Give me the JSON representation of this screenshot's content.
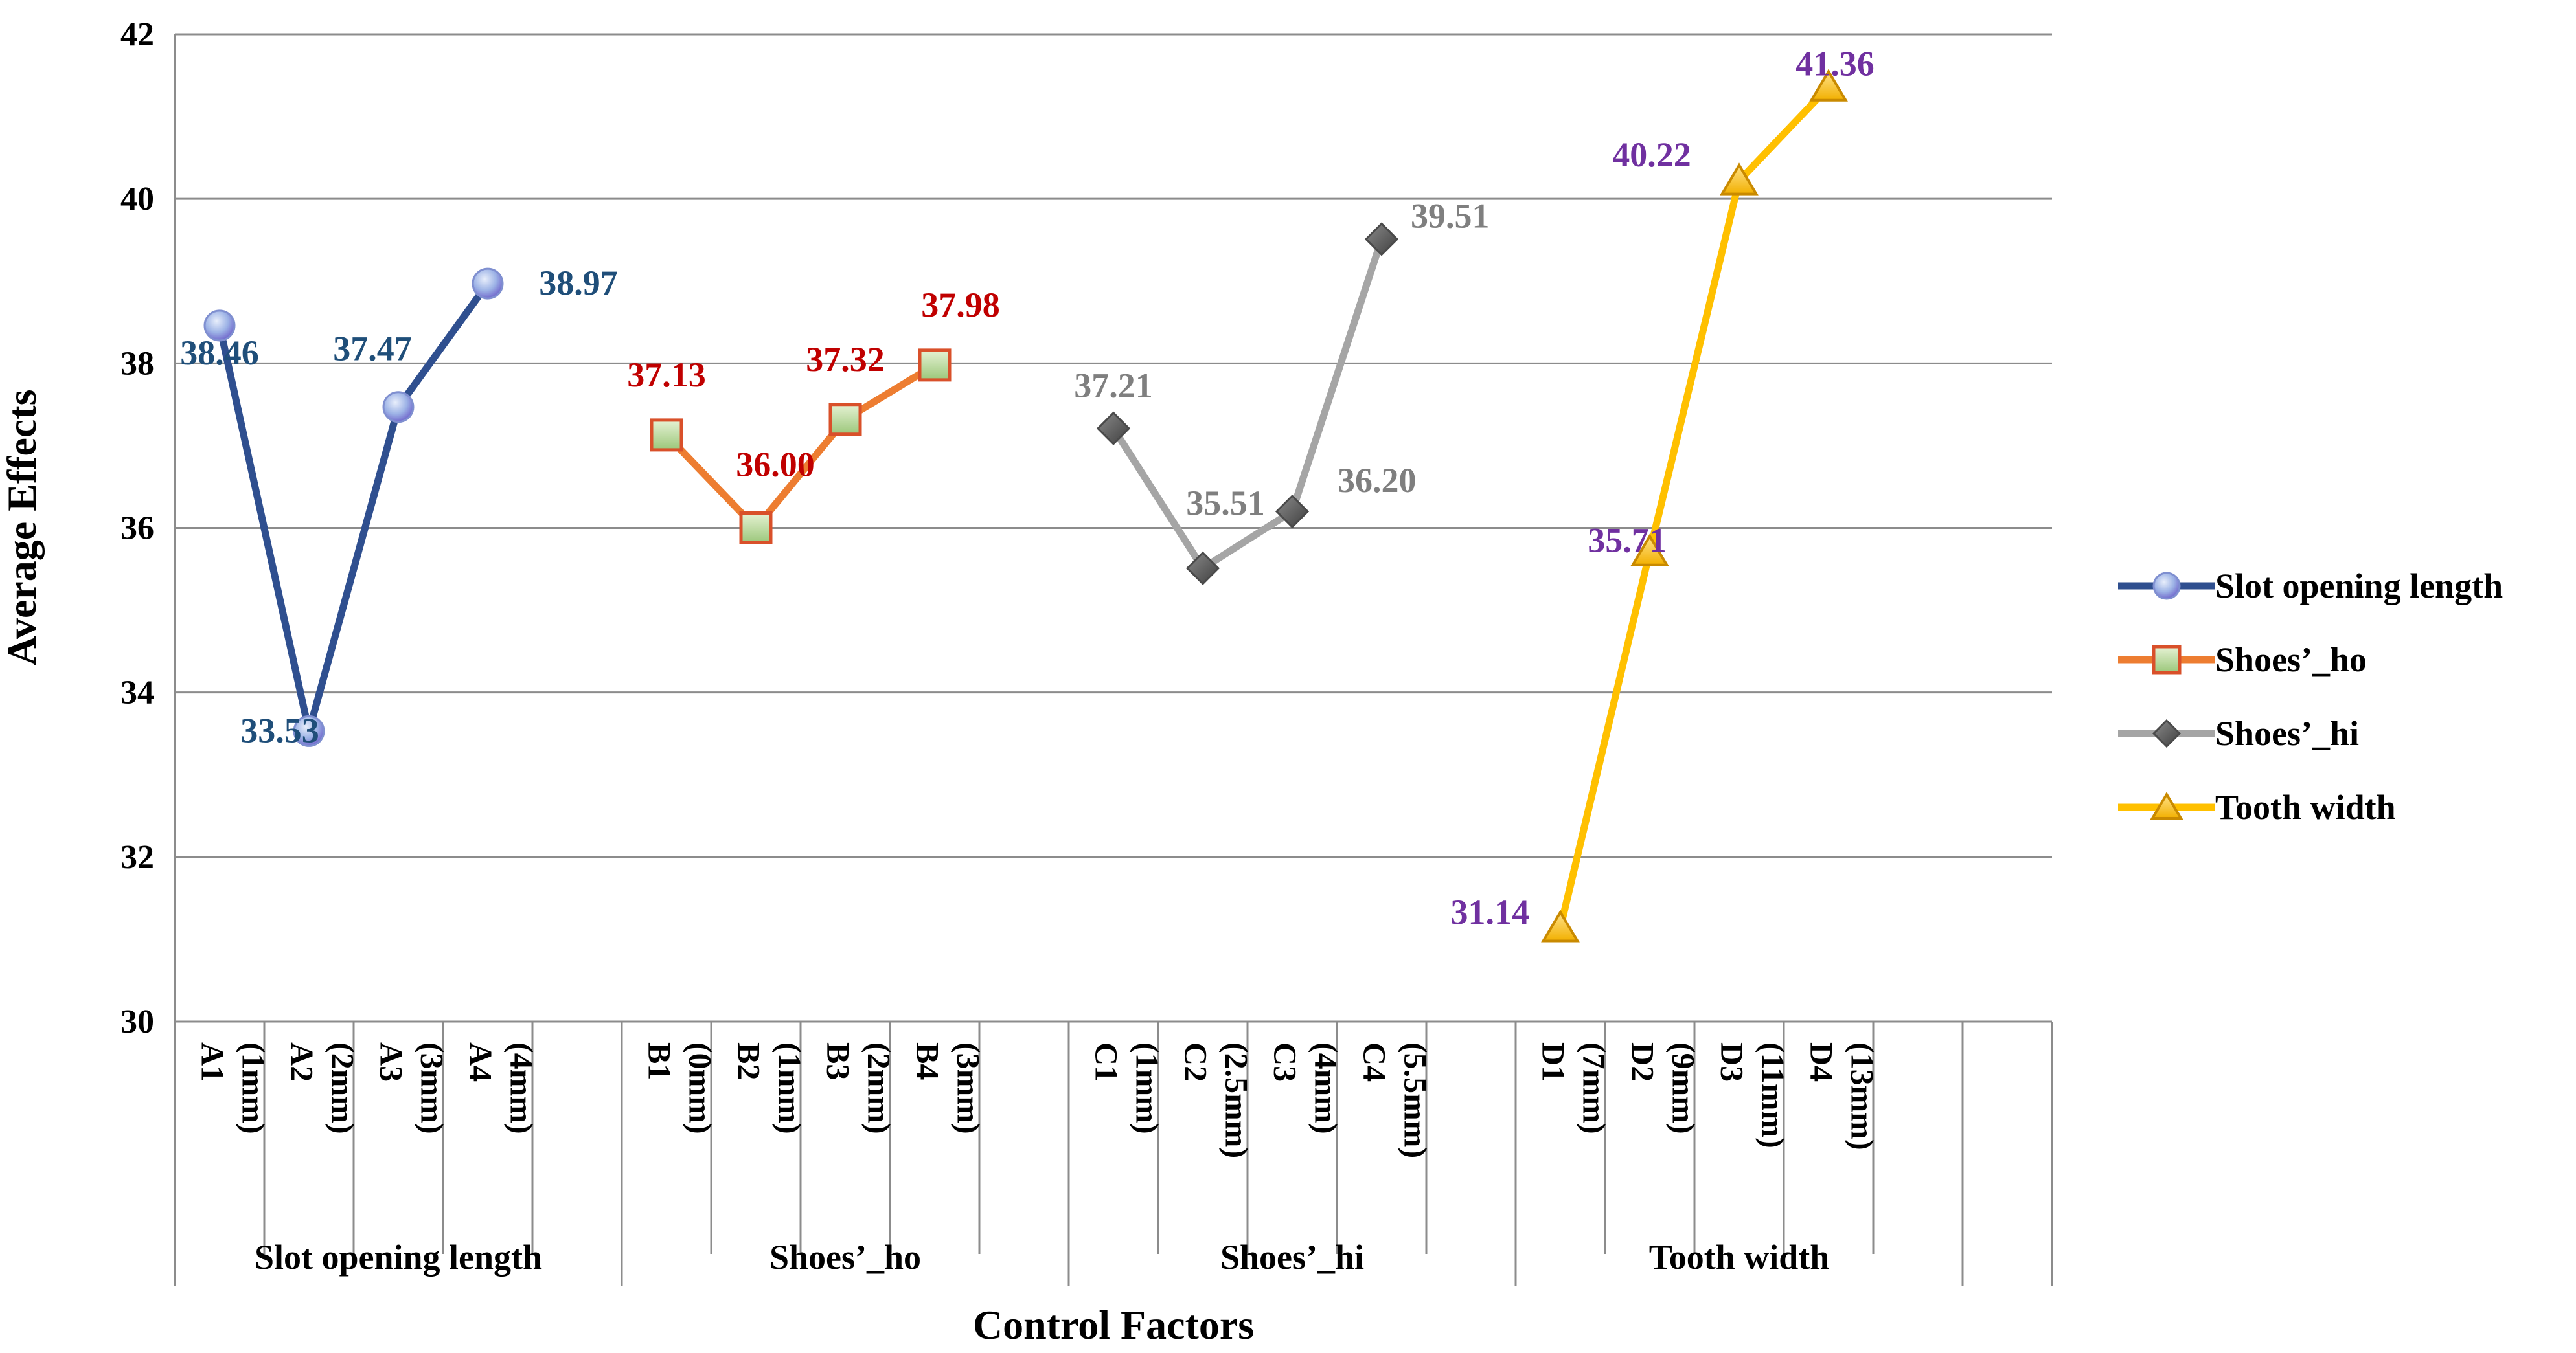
{
  "chart_data": {
    "type": "line",
    "ylabel": "Average Effects",
    "xlabel": "Control Factors",
    "ylim": [
      30,
      42
    ],
    "yticks": [
      30,
      32,
      34,
      36,
      38,
      40,
      42
    ],
    "grid": true,
    "legend_position": "right",
    "groups": [
      {
        "name": "Slot opening length",
        "categories": [
          "A1 (1mm)",
          "A2 (2mm)",
          "A3 (3mm)",
          "A4 (4mm)"
        ]
      },
      {
        "name": "Shoes’_ho",
        "categories": [
          "B1 (0mm)",
          "B2 (1mm)",
          "B3 (2mm)",
          "B4 (3mm)"
        ]
      },
      {
        "name": "Shoes’_hi",
        "categories": [
          "C1 (1mm)",
          "C2 (2.5mm)",
          "C3 (4mm)",
          "C4 (5.5mm)"
        ]
      },
      {
        "name": "Tooth width",
        "categories": [
          "D1 (7mm)",
          "D2 (9mm)",
          "D3 (11mm)",
          "D4 (13mm)"
        ]
      }
    ],
    "series": [
      {
        "name": "Slot opening length",
        "values": [
          38.46,
          33.53,
          37.47,
          38.97
        ],
        "labels": [
          "38.46",
          "33.53",
          "37.47",
          "38.97"
        ],
        "color": "#2F4F8F",
        "label_color": "#1F4E79",
        "marker": "circle"
      },
      {
        "name": "Shoes’_ho",
        "values": [
          37.13,
          36.0,
          37.32,
          37.98
        ],
        "labels": [
          "37.13",
          "36.00",
          "37.32",
          "37.98"
        ],
        "color": "#ED7D31",
        "label_color": "#C00000",
        "marker": "square"
      },
      {
        "name": "Shoes’_hi",
        "values": [
          37.21,
          35.51,
          36.2,
          39.51
        ],
        "labels": [
          "37.21",
          "35.51",
          "36.20",
          "39.51"
        ],
        "color": "#A5A5A5",
        "label_color": "#7F7F7F",
        "marker": "diamond"
      },
      {
        "name": "Tooth width",
        "values": [
          31.14,
          35.71,
          40.22,
          41.36
        ],
        "labels": [
          "31.14",
          "35.71",
          "40.22",
          "41.36"
        ],
        "color": "#FFC000",
        "label_color": "#7030A0",
        "marker": "triangle"
      }
    ]
  }
}
